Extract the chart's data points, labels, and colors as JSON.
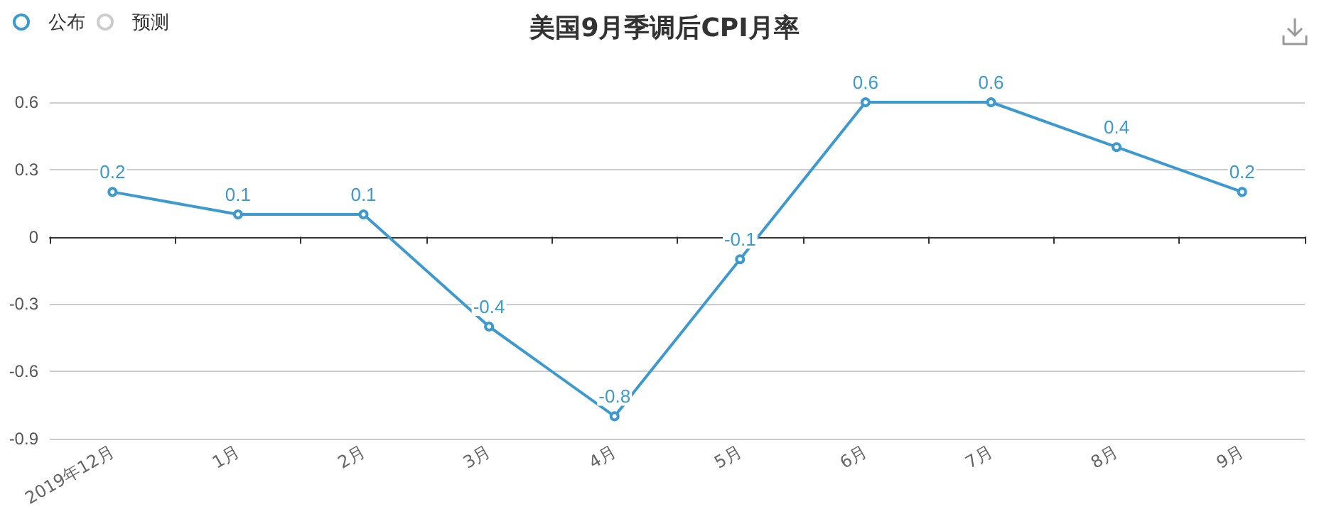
{
  "chart_data": {
    "type": "line",
    "title": "美国9月季调后CPI月率",
    "categories": [
      "2019年12月",
      "1月",
      "2月",
      "3月",
      "4月",
      "5月",
      "6月",
      "7月",
      "8月",
      "9月"
    ],
    "series": [
      {
        "name": "公布",
        "color": "#3d9ad1",
        "values": [
          0.2,
          0.1,
          0.1,
          -0.4,
          -0.8,
          -0.1,
          0.6,
          0.6,
          0.4,
          0.2
        ]
      },
      {
        "name": "预测",
        "color": "#cccccc",
        "values": [
          null,
          null,
          null,
          null,
          null,
          null,
          null,
          null,
          null,
          null
        ]
      }
    ],
    "ylim": [
      -0.9,
      0.6
    ],
    "yticks": [
      -0.9,
      -0.6,
      -0.3,
      0,
      0.3,
      0.6
    ],
    "grid": "y",
    "legend": "top left",
    "marker": "circle",
    "data_labels": true
  }
}
